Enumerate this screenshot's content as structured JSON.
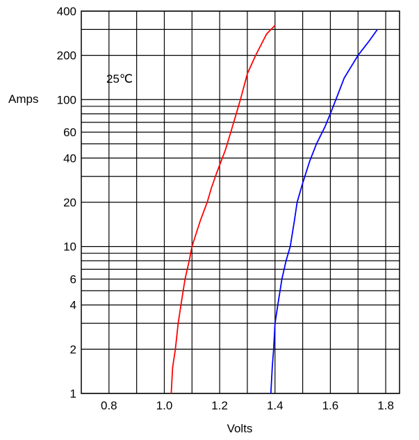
{
  "chart_data": {
    "type": "line",
    "xlabel": "Volts",
    "ylabel": "Amps",
    "annotation": "25℃",
    "xlim": [
      0.7,
      1.85
    ],
    "ylim": [
      1,
      400
    ],
    "yscale": "log",
    "grid": true,
    "legend": "none",
    "x_ticks": [
      0.8,
      1.0,
      1.2,
      1.4,
      1.6,
      1.8
    ],
    "x_tick_labels": [
      "0.8",
      "1.0",
      "1.2",
      "1.4",
      "1.6",
      "1.8"
    ],
    "y_ticks": [
      1,
      2,
      4,
      6,
      10,
      20,
      40,
      60,
      100,
      200,
      400
    ],
    "y_tick_labels": [
      "1",
      "2",
      "4",
      "6",
      "10",
      "20",
      "40",
      "60",
      "100",
      "200",
      "400"
    ],
    "y_gridlines": [
      1,
      2,
      3,
      4,
      5,
      6,
      7,
      8,
      9,
      10,
      20,
      30,
      40,
      50,
      60,
      70,
      80,
      90,
      100,
      200,
      300,
      400
    ],
    "series": [
      {
        "color": "#ff0000",
        "points": [
          [
            1.025,
            1
          ],
          [
            1.03,
            1.5
          ],
          [
            1.04,
            2
          ],
          [
            1.05,
            3
          ],
          [
            1.06,
            4
          ],
          [
            1.075,
            6
          ],
          [
            1.09,
            8
          ],
          [
            1.1,
            10
          ],
          [
            1.13,
            15
          ],
          [
            1.155,
            20
          ],
          [
            1.17,
            25
          ],
          [
            1.19,
            32
          ],
          [
            1.22,
            45
          ],
          [
            1.24,
            60
          ],
          [
            1.26,
            80
          ],
          [
            1.275,
            100
          ],
          [
            1.3,
            150
          ],
          [
            1.33,
            200
          ],
          [
            1.37,
            280
          ],
          [
            1.4,
            320
          ]
        ]
      },
      {
        "color": "#0000ff",
        "points": [
          [
            1.385,
            1
          ],
          [
            1.39,
            1.5
          ],
          [
            1.395,
            2
          ],
          [
            1.4,
            3
          ],
          [
            1.41,
            4
          ],
          [
            1.425,
            6
          ],
          [
            1.44,
            8
          ],
          [
            1.455,
            10
          ],
          [
            1.47,
            15
          ],
          [
            1.48,
            20
          ],
          [
            1.5,
            27
          ],
          [
            1.525,
            38
          ],
          [
            1.55,
            50
          ],
          [
            1.58,
            65
          ],
          [
            1.6,
            80
          ],
          [
            1.62,
            100
          ],
          [
            1.65,
            140
          ],
          [
            1.7,
            200
          ],
          [
            1.74,
            250
          ],
          [
            1.77,
            300
          ]
        ]
      }
    ]
  }
}
